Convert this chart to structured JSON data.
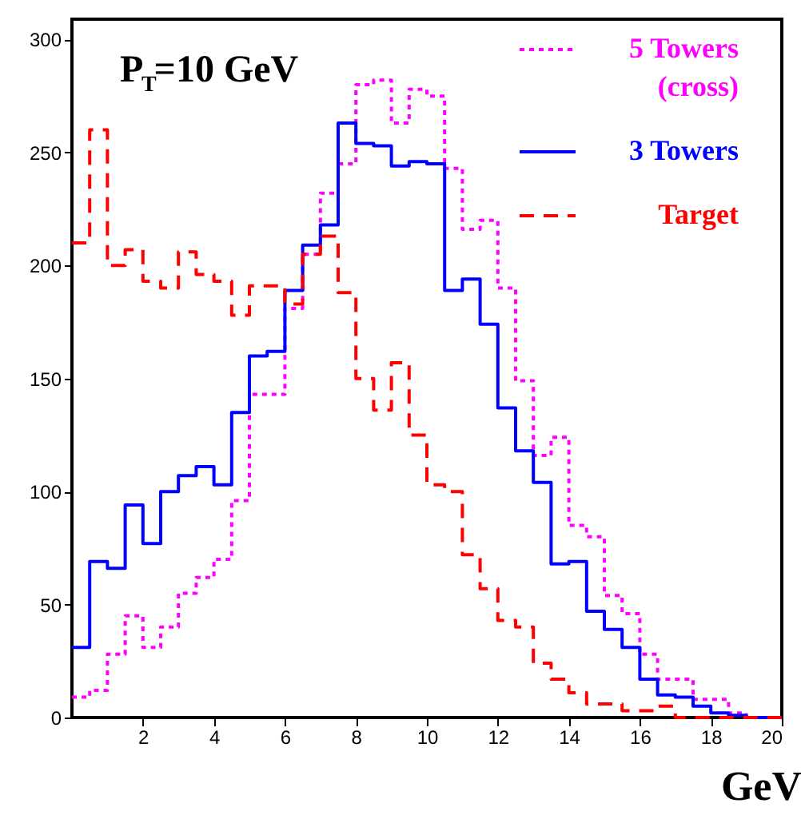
{
  "chart_data": {
    "type": "histogram",
    "xlabel": "GeV",
    "annotations": [
      "P$_{T}$=10 GeV"
    ],
    "bins": [
      0,
      0.5,
      1,
      1.5,
      2,
      2.5,
      3,
      3.5,
      4,
      4.5,
      5,
      5.5,
      6,
      6.5,
      7,
      7.5,
      8,
      8.5,
      9,
      9.5,
      10,
      10.5,
      11,
      11.5,
      12,
      12.5,
      13,
      13.5,
      14,
      14.5,
      15,
      15.5,
      16,
      16.5,
      17,
      17.5,
      18,
      18.5,
      19,
      19.5,
      20
    ],
    "series": [
      {
        "name": "5 Towers\n(cross)",
        "color": "#ff00ff",
        "line_style": "dotted",
        "values": [
          9,
          12,
          28,
          45,
          31,
          40,
          55,
          62,
          70,
          96,
          143,
          143,
          181,
          205,
          232,
          245,
          280,
          282,
          263,
          278,
          275,
          243,
          216,
          220,
          190,
          149,
          116,
          124,
          85,
          80,
          54,
          46,
          28,
          17,
          17,
          8,
          8,
          2,
          0,
          0
        ]
      },
      {
        "name": "3 Towers",
        "color": "#0000ff",
        "line_style": "solid",
        "values": [
          31,
          69,
          66,
          94,
          77,
          100,
          107,
          111,
          103,
          135,
          160,
          162,
          189,
          209,
          218,
          263,
          254,
          253,
          244,
          246,
          245,
          189,
          194,
          174,
          137,
          118,
          104,
          68,
          69,
          47,
          39,
          31,
          17,
          10,
          9,
          5,
          2,
          1,
          0,
          0
        ]
      },
      {
        "name": "Target",
        "color": "#ff0000",
        "line_style": "dashed",
        "values": [
          210,
          260,
          200,
          207,
          193,
          190,
          206,
          196,
          193,
          178,
          191,
          191,
          183,
          205,
          213,
          188,
          150,
          136,
          157,
          125,
          103,
          100,
          72,
          57,
          43,
          40,
          24,
          17,
          11,
          6,
          6,
          3,
          3,
          5,
          0,
          0,
          0,
          0,
          0,
          0
        ]
      }
    ],
    "xlim": [
      0,
      20
    ],
    "ylim": [
      0,
      309
    ],
    "xticks": [
      2,
      4,
      6,
      8,
      10,
      12,
      14,
      16,
      18,
      20
    ],
    "yticks": [
      0,
      50,
      100,
      150,
      200,
      250,
      300
    ],
    "grid": false,
    "legend": "top right"
  }
}
